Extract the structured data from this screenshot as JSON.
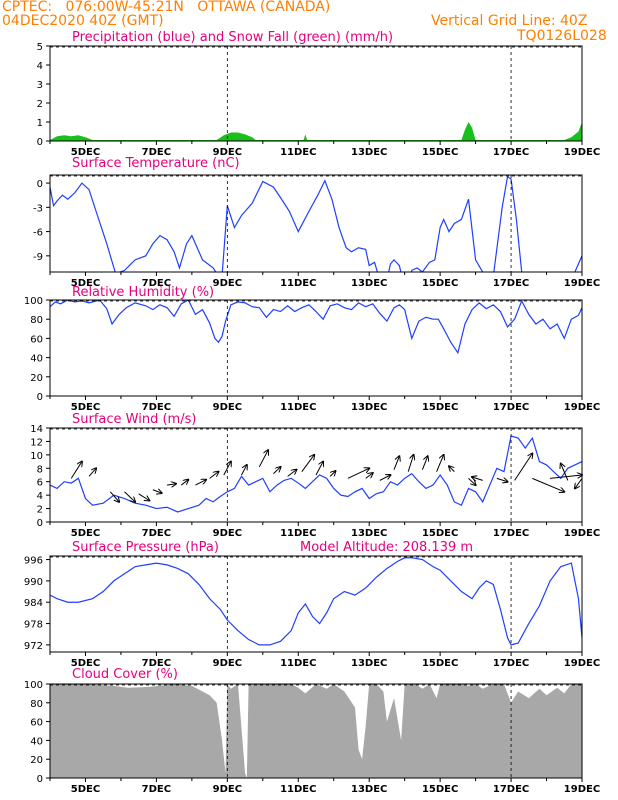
{
  "header": {
    "line1_left": "CPTEC:   076:00W-45:21N   OTTAWA (CANADA)",
    "line2_left": "04DEC2020 40Z (GMT)",
    "line2_right": "Vertical Grid Line: 40Z",
    "line3_right": "TQ0126L028"
  },
  "colors": {
    "header": "#ff7f00",
    "title": "#e5007e",
    "line": "#1f3fff",
    "snow": "#1bbf1b",
    "cloud": "#a8a8a8",
    "arrow": "#000000"
  },
  "x_tick_labels": [
    "5DEC",
    "7DEC",
    "9DEC",
    "11DEC",
    "13DEC",
    "15DEC",
    "17DEC",
    "19DEC"
  ],
  "chart_data": [
    {
      "type": "area",
      "title": "Precipitation (blue) and Snow Fall (green) (mm/h)",
      "ylim": [
        0,
        5
      ],
      "yticks": [
        0,
        1,
        2,
        3,
        4,
        5
      ],
      "series": [
        {
          "name": "Snow Fall",
          "color": "#1bbf1b",
          "x": [
            4.0,
            4.2,
            4.4,
            4.6,
            4.8,
            5.0,
            5.2,
            8.7,
            8.9,
            9.1,
            9.3,
            9.5,
            9.7,
            9.8,
            11.15,
            11.2,
            11.25,
            15.6,
            15.7,
            15.8,
            15.9,
            16.0,
            18.5,
            18.7,
            18.9,
            19.0
          ],
          "values": [
            0.05,
            0.25,
            0.3,
            0.25,
            0.3,
            0.2,
            0.05,
            0.05,
            0.3,
            0.45,
            0.45,
            0.35,
            0.2,
            0.05,
            0.05,
            0.35,
            0.05,
            0.05,
            0.6,
            1.0,
            0.7,
            0.05,
            0.05,
            0.2,
            0.5,
            1.0
          ]
        }
      ],
      "vertical_grid_lines": [
        9.0,
        17.0
      ]
    },
    {
      "type": "line",
      "title": "Surface Temperature (nC)",
      "ylim": [
        -11,
        1
      ],
      "yticks": [
        0,
        -3,
        -6,
        -9
      ],
      "series": [
        {
          "name": "Surface Temperature",
          "color": "#1f3fff",
          "x": [
            4.0,
            4.1,
            4.2,
            4.35,
            4.5,
            4.7,
            4.9,
            5.1,
            5.3,
            5.6,
            5.85,
            6.1,
            6.4,
            6.7,
            6.9,
            7.1,
            7.3,
            7.5,
            7.65,
            7.85,
            8.0,
            8.3,
            8.6,
            8.75,
            8.85,
            9.0,
            9.2,
            9.4,
            9.7,
            10.0,
            10.3,
            10.5,
            10.75,
            11.0,
            11.3,
            11.55,
            11.75,
            11.95,
            12.15,
            12.35,
            12.5,
            12.7,
            12.9,
            13.0,
            13.15,
            13.3,
            13.5,
            13.6,
            13.7,
            13.85,
            14.0,
            14.1,
            14.2,
            14.35,
            14.5,
            14.7,
            14.85,
            15.0,
            15.1,
            15.25,
            15.4,
            15.6,
            15.8,
            16.0,
            16.2,
            16.5,
            16.75,
            16.9,
            17.0,
            17.15,
            17.3,
            17.5,
            17.75,
            18.0,
            18.3,
            18.55,
            18.75,
            18.9,
            19.0
          ],
          "values": [
            -0.5,
            -2.8,
            -2.2,
            -1.5,
            -2.0,
            -1.2,
            0,
            -0.8,
            -3.5,
            -7.5,
            -11.2,
            -10.8,
            -9.5,
            -9.0,
            -7.5,
            -6.5,
            -7.0,
            -8.5,
            -10.5,
            -7.5,
            -6.5,
            -9.5,
            -10.5,
            -11.5,
            -11.5,
            -2.8,
            -5.5,
            -4.0,
            -2.5,
            0.2,
            -0.5,
            -1.8,
            -3.5,
            -6.0,
            -3.5,
            -1.5,
            0.3,
            -2.0,
            -5.5,
            -8.0,
            -8.5,
            -8.0,
            -8.2,
            -10.2,
            -9.8,
            -12.0,
            -12.0,
            -10.0,
            -9.5,
            -10.2,
            -13.0,
            -12.5,
            -10.8,
            -10.5,
            -11.0,
            -9.8,
            -9.5,
            -5.5,
            -4.5,
            -6.0,
            -5.0,
            -4.5,
            -2.0,
            -9.5,
            -11.0,
            -11.5,
            -3.0,
            0.8,
            0.5,
            -4.5,
            -11.0,
            -11.5,
            -11.5,
            -12.0,
            -11.8,
            -12.0,
            -11.5,
            -10.0,
            -9.0
          ]
        }
      ],
      "vertical_grid_lines": [
        9.0,
        17.0
      ]
    },
    {
      "type": "line",
      "title": "Relative Humidity (%)",
      "ylim": [
        0,
        100
      ],
      "yticks": [
        0,
        20,
        40,
        60,
        80,
        100
      ],
      "series": [
        {
          "name": "Relative Humidity",
          "color": "#1f3fff",
          "x": [
            4.0,
            4.15,
            4.3,
            4.5,
            4.7,
            4.9,
            5.1,
            5.4,
            5.6,
            5.75,
            5.95,
            6.15,
            6.4,
            6.7,
            6.9,
            7.1,
            7.3,
            7.5,
            7.7,
            7.9,
            8.1,
            8.3,
            8.5,
            8.65,
            8.75,
            8.85,
            8.95,
            9.1,
            9.3,
            9.5,
            9.7,
            9.9,
            10.1,
            10.3,
            10.5,
            10.7,
            10.9,
            11.1,
            11.3,
            11.5,
            11.7,
            11.9,
            12.1,
            12.3,
            12.5,
            12.7,
            12.9,
            13.1,
            13.3,
            13.5,
            13.7,
            13.85,
            14.0,
            14.2,
            14.4,
            14.6,
            14.8,
            14.95,
            15.1,
            15.3,
            15.5,
            15.7,
            15.9,
            16.1,
            16.3,
            16.5,
            16.7,
            16.9,
            17.1,
            17.3,
            17.5,
            17.7,
            17.9,
            18.1,
            18.3,
            18.5,
            18.7,
            18.9,
            19.0
          ],
          "values": [
            93,
            98,
            96,
            100,
            98,
            99,
            97,
            100,
            91,
            75,
            85,
            92,
            97,
            94,
            90,
            95,
            92,
            83,
            96,
            100,
            85,
            90,
            76,
            60,
            56,
            62,
            78,
            95,
            98,
            97,
            93,
            92,
            82,
            90,
            88,
            94,
            88,
            92,
            95,
            88,
            80,
            94,
            96,
            92,
            90,
            97,
            93,
            96,
            86,
            78,
            92,
            95,
            90,
            60,
            78,
            82,
            80,
            80,
            70,
            56,
            45,
            75,
            90,
            97,
            91,
            95,
            88,
            72,
            80,
            99,
            85,
            75,
            80,
            70,
            75,
            60,
            80,
            84,
            92
          ]
        }
      ],
      "vertical_grid_lines": [
        9.0,
        17.0
      ]
    },
    {
      "type": "line",
      "title": "Surface Wind (m/s)",
      "ylim": [
        0,
        14
      ],
      "yticks": [
        0,
        2,
        4,
        6,
        8,
        10,
        12,
        14
      ],
      "series": [
        {
          "name": "Surface Wind",
          "color": "#1f3fff",
          "x": [
            4.0,
            4.2,
            4.4,
            4.6,
            4.8,
            5.0,
            5.2,
            5.5,
            5.8,
            6.1,
            6.4,
            6.7,
            7.0,
            7.3,
            7.6,
            7.9,
            8.2,
            8.4,
            8.6,
            8.8,
            9.0,
            9.2,
            9.4,
            9.6,
            9.8,
            10.0,
            10.2,
            10.4,
            10.6,
            10.8,
            11.0,
            11.2,
            11.4,
            11.6,
            11.8,
            12.0,
            12.2,
            12.4,
            12.6,
            12.8,
            13.0,
            13.2,
            13.4,
            13.6,
            13.8,
            14.0,
            14.2,
            14.4,
            14.6,
            14.8,
            15.0,
            15.2,
            15.4,
            15.6,
            15.8,
            16.0,
            16.2,
            16.4,
            16.6,
            16.8,
            17.0,
            17.2,
            17.4,
            17.6,
            17.8,
            18.0,
            18.2,
            18.4,
            18.6,
            18.8,
            19.0
          ],
          "values": [
            5.5,
            5.0,
            6.0,
            5.8,
            6.5,
            3.5,
            2.5,
            2.8,
            4.0,
            3.5,
            2.8,
            2.5,
            2.0,
            2.2,
            1.5,
            2.0,
            2.5,
            3.5,
            3.0,
            3.8,
            4.5,
            5.0,
            6.8,
            5.5,
            6.0,
            6.5,
            4.5,
            5.5,
            6.2,
            6.5,
            5.8,
            5.0,
            6.0,
            7.0,
            6.5,
            5.0,
            4.0,
            3.8,
            4.5,
            5.0,
            3.5,
            4.2,
            4.5,
            6.0,
            5.5,
            6.5,
            7.2,
            6.0,
            5.0,
            5.5,
            7.0,
            5.5,
            3.0,
            2.5,
            5.0,
            4.5,
            3.0,
            5.5,
            8.0,
            7.5,
            12.8,
            12.5,
            11.0,
            12.5,
            9.0,
            8.5,
            7.5,
            6.5,
            8.0,
            8.5,
            9.0
          ]
        }
      ],
      "vertical_grid_lines": [
        9.0,
        17.0
      ]
    },
    {
      "type": "line",
      "title": "Surface Pressure (hPa)",
      "annotation": "Model Altitude: 208.139  m",
      "ylim": [
        970,
        997
      ],
      "yticks": [
        972,
        978,
        984,
        990,
        996
      ],
      "series": [
        {
          "name": "Surface Pressure",
          "color": "#1f3fff",
          "x": [
            4.0,
            4.2,
            4.5,
            4.8,
            5.2,
            5.5,
            5.8,
            6.1,
            6.4,
            6.7,
            7.0,
            7.3,
            7.6,
            7.9,
            8.2,
            8.5,
            8.8,
            9.0,
            9.3,
            9.6,
            9.9,
            10.2,
            10.5,
            10.8,
            11.0,
            11.2,
            11.4,
            11.6,
            11.8,
            12.0,
            12.3,
            12.6,
            12.9,
            13.2,
            13.5,
            13.8,
            14.0,
            14.2,
            14.5,
            14.8,
            15.0,
            15.3,
            15.6,
            15.9,
            16.1,
            16.3,
            16.5,
            16.7,
            16.9,
            17.0,
            17.2,
            17.5,
            17.8,
            18.1,
            18.4,
            18.7,
            18.9,
            19.0
          ],
          "values": [
            986,
            985,
            984,
            984,
            985,
            987,
            990,
            992,
            994,
            994.5,
            995,
            994.5,
            993.5,
            992,
            989,
            985,
            982,
            979,
            976,
            973.5,
            972,
            972,
            973,
            976,
            981,
            983.5,
            980,
            978,
            981,
            985,
            987,
            986,
            988,
            991,
            993.5,
            995.5,
            996.5,
            996.5,
            996,
            994,
            993,
            990,
            987,
            985,
            988,
            990,
            989,
            982,
            974,
            972,
            972.5,
            978,
            983,
            990,
            994,
            995,
            985,
            974
          ]
        }
      ],
      "vertical_grid_lines": [
        9.0,
        17.0
      ]
    },
    {
      "type": "area",
      "title": "Cloud Cover (%)",
      "ylim": [
        0,
        100
      ],
      "yticks": [
        0,
        20,
        40,
        60,
        80,
        100
      ],
      "series": [
        {
          "name": "Cloud Cover",
          "color": "#a8a8a8",
          "x": [
            4.0,
            5.0,
            5.8,
            6.2,
            6.8,
            7.5,
            8.0,
            8.3,
            8.5,
            8.7,
            8.85,
            8.95,
            9.0,
            9.1,
            9.3,
            9.5,
            9.55,
            9.6,
            10.0,
            10.5,
            10.8,
            11.0,
            11.2,
            11.5,
            11.8,
            12.0,
            12.3,
            12.6,
            12.7,
            12.8,
            12.9,
            13.0,
            13.2,
            13.4,
            13.5,
            13.7,
            13.9,
            14.0,
            14.3,
            14.5,
            14.7,
            14.9,
            15.0,
            15.2,
            15.4,
            15.6,
            15.8,
            16.0,
            16.2,
            16.5,
            16.8,
            17.0,
            17.2,
            17.5,
            17.8,
            18.0,
            18.3,
            18.5,
            18.7,
            19.0
          ],
          "values": [
            100,
            100,
            98,
            96,
            97,
            100,
            98,
            92,
            88,
            80,
            40,
            5,
            100,
            95,
            100,
            5,
            0,
            100,
            100,
            100,
            100,
            96,
            90,
            100,
            95,
            100,
            92,
            75,
            30,
            20,
            55,
            100,
            100,
            92,
            60,
            85,
            40,
            100,
            100,
            95,
            100,
            85,
            100,
            100,
            100,
            100,
            98,
            100,
            95,
            100,
            100,
            80,
            92,
            85,
            95,
            88,
            96,
            90,
            100,
            100
          ]
        }
      ],
      "vertical_grid_lines": [
        9.0,
        17.0
      ]
    }
  ],
  "wind_arrows": {
    "x": [
      4.6,
      5.1,
      5.7,
      6.1,
      6.5,
      6.9,
      7.3,
      7.7,
      8.1,
      8.5,
      8.9,
      9.4,
      9.9,
      10.3,
      10.7,
      11.1,
      11.5,
      11.9,
      12.4,
      12.9,
      13.3,
      13.7,
      14.1,
      14.5,
      14.9,
      15.4,
      15.8,
      16.2,
      16.6,
      17.1,
      17.6,
      18.1,
      18.6,
      19.0
    ],
    "y": [
      6.5,
      6.8,
      4.5,
      4.5,
      4.2,
      4.8,
      5.5,
      5.5,
      5.5,
      6.5,
      7.0,
      7.0,
      8.2,
      7.2,
      6.8,
      7.5,
      7.0,
      6.8,
      6.5,
      6.5,
      6.2,
      7.8,
      7.5,
      7.8,
      7.5,
      7.5,
      6.5,
      6.2,
      6.5,
      6.2,
      6.5,
      6.5,
      6.2,
      6.5
    ],
    "dx": [
      0.3,
      0.2,
      0.25,
      0.3,
      0.3,
      0.25,
      0.25,
      0.2,
      0.3,
      0.25,
      0.2,
      0.15,
      0.25,
      0.2,
      0.25,
      0.35,
      0.2,
      0.15,
      0.6,
      0.2,
      0.3,
      0.15,
      0.15,
      0.15,
      0.2,
      -0.15,
      0.2,
      -0.3,
      0.3,
      0.5,
      0.9,
      0.9,
      -0.2,
      -0.2
    ],
    "dy": [
      2.5,
      1.2,
      -1.5,
      -1.5,
      -1.0,
      -0.5,
      0.2,
      0.8,
      0.8,
      1.0,
      2.0,
      1.5,
      2.5,
      1.0,
      1.0,
      2.5,
      2.0,
      0.8,
      1.5,
      0.8,
      0.8,
      2.0,
      2.5,
      2.0,
      2.5,
      0.8,
      -1.0,
      0.5,
      -0.5,
      4.0,
      -2.0,
      0.5,
      2.5,
      -1.5
    ]
  }
}
